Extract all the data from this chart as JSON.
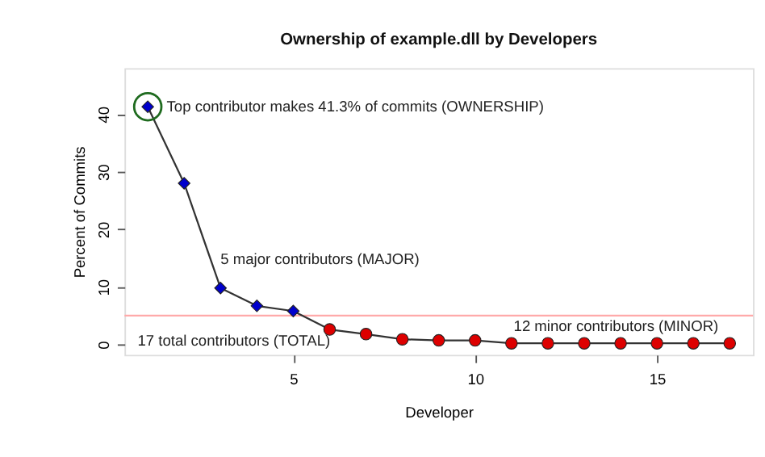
{
  "chart_data": {
    "type": "line",
    "title": "Ownership of example.dll by Developers",
    "xlabel": "Developer",
    "ylabel": "Percent of Commits",
    "xlim": [
      0.36,
      17.64
    ],
    "ylim": [
      -1.8,
      48
    ],
    "xticks": [
      5,
      10,
      15
    ],
    "yticks": [
      0,
      10,
      20,
      30,
      40
    ],
    "grid": false,
    "series": [
      {
        "color": "#333333",
        "marker": "none",
        "x": [
          1,
          2,
          3,
          4,
          5,
          6,
          7,
          8,
          9,
          10,
          11,
          12,
          13,
          14,
          15,
          16,
          17
        ],
        "values": [
          41.3,
          28,
          9.8,
          6.7,
          5.8,
          2.6,
          1.8,
          0.9,
          0.7,
          0.7,
          0.2,
          0.2,
          0.2,
          0.2,
          0.2,
          0.2,
          0.2
        ]
      },
      {
        "type": "scatter",
        "color": "#0000cc",
        "marker": "diamond",
        "x": [
          1,
          2,
          3,
          4,
          5
        ],
        "values": [
          41.3,
          28,
          9.8,
          6.7,
          5.8
        ]
      },
      {
        "type": "scatter",
        "color": "#dd0000",
        "marker": "circle",
        "x": [
          6,
          7,
          8,
          9,
          10,
          11,
          12,
          13,
          14,
          15,
          16,
          17
        ],
        "values": [
          2.6,
          1.8,
          0.9,
          0.7,
          0.7,
          0.2,
          0.2,
          0.2,
          0.2,
          0.2,
          0.2,
          0.2
        ]
      }
    ],
    "ref_lines": [
      {
        "axis": "y",
        "value": 5,
        "color": "#ffaaaa"
      }
    ],
    "annotations": [
      {
        "text": "Top contributor makes 41.3% of commits (OWNERSHIP)",
        "x": 1.52,
        "y": 41.3
      },
      "5 major contributors (MAJOR)",
      "17 total contributors (TOTAL)",
      "12 minor contributors (MINOR)"
    ]
  }
}
